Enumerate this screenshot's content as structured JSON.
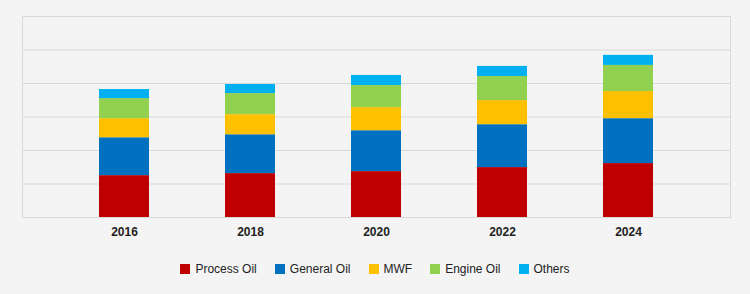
{
  "chart_data": {
    "type": "bar",
    "stacked": true,
    "grid": true,
    "tick_labels": "x",
    "legend": "bottom",
    "categories": [
      "2016",
      "2018",
      "2020",
      "2022",
      "2024"
    ],
    "ylim": [
      0,
      60
    ],
    "yticks": [
      0,
      10,
      20,
      30,
      40,
      50,
      60
    ],
    "series": [
      {
        "name": "Process Oil",
        "color": "#c00000",
        "values": [
          12.5,
          13.1,
          13.7,
          14.9,
          16.1
        ]
      },
      {
        "name": "General Oil",
        "color": "#0070c0",
        "values": [
          11.3,
          11.6,
          12.2,
          12.8,
          13.4
        ]
      },
      {
        "name": "MWF",
        "color": "#ffc000",
        "values": [
          5.7,
          6.0,
          6.9,
          7.2,
          8.1
        ]
      },
      {
        "name": "Engine Oil",
        "color": "#92d050",
        "values": [
          6.0,
          6.3,
          6.6,
          7.2,
          7.8
        ]
      },
      {
        "name": "Others",
        "color": "#00b0f0",
        "values": [
          2.7,
          2.7,
          3.0,
          3.0,
          3.0
        ]
      }
    ]
  }
}
